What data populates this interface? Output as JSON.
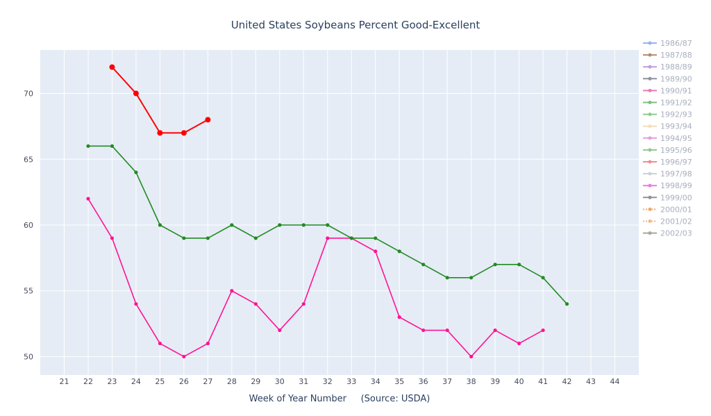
{
  "chart_data": {
    "type": "line",
    "title": "United States Soybeans Percent Good-Excellent",
    "xlabel": "Week of Year Number     (Source: USDA)",
    "ylabel": "",
    "xlim": [
      20,
      45
    ],
    "ylim": [
      48.6,
      73.3
    ],
    "xticks": [
      "21",
      "22",
      "23",
      "24",
      "25",
      "26",
      "27",
      "28",
      "29",
      "30",
      "31",
      "32",
      "33",
      "34",
      "35",
      "36",
      "37",
      "38",
      "39",
      "40",
      "41",
      "42",
      "43",
      "44"
    ],
    "yticks": [
      "50",
      "55",
      "60",
      "65",
      "70"
    ],
    "grid": true,
    "legend_position": "right",
    "plot_background": "#e5ecf6",
    "series": [
      {
        "name": "1986/87",
        "color": "#93b4f0",
        "x": [],
        "values": []
      },
      {
        "name": "1987/88",
        "color": "#b08b72",
        "x": [],
        "values": []
      },
      {
        "name": "1988/89",
        "color": "#c39ae0",
        "x": [],
        "values": []
      },
      {
        "name": "1989/90",
        "color": "#8e929e",
        "x": [],
        "values": []
      },
      {
        "name": "1990/91",
        "color": "#e879b6",
        "x": [],
        "values": []
      },
      {
        "name": "1991/92",
        "color": "#7bbf7b",
        "x": [],
        "values": []
      },
      {
        "name": "1992/93",
        "color": "#8ccc8c",
        "x": [],
        "values": []
      },
      {
        "name": "1993/94",
        "color": "#f4ddb8",
        "x": [],
        "values": []
      },
      {
        "name": "1994/95",
        "color": "#e89ae0",
        "x": [],
        "values": []
      },
      {
        "name": "1995/96",
        "color": "#92c78e",
        "x": [],
        "values": []
      },
      {
        "name": "1996/97",
        "color": "#ee8f8f",
        "x": [],
        "values": []
      },
      {
        "name": "1997/98",
        "color": "#c9d0da",
        "x": [],
        "values": []
      },
      {
        "name": "1998/99",
        "color": "#e67ce0",
        "x": [],
        "values": []
      },
      {
        "name": "1999/00",
        "color": "#8e929e",
        "x": [],
        "values": []
      },
      {
        "name": "2000/01",
        "color": "#f0a868",
        "dash": true,
        "x": [],
        "values": []
      },
      {
        "name": "2001/02",
        "color": "#f0b890",
        "dash": true,
        "x": [],
        "values": []
      },
      {
        "name": "2002/03",
        "color": "#a8a89c",
        "x": [],
        "values": []
      },
      {
        "name": "",
        "color": "#ff1493",
        "x": [
          22,
          23,
          24,
          25,
          26,
          27,
          28,
          29,
          30,
          31,
          32,
          33,
          34,
          35,
          36,
          37,
          38,
          39,
          40,
          41
        ],
        "values": [
          62,
          59,
          54,
          51,
          50,
          51,
          55,
          54,
          52,
          54,
          59,
          59,
          58,
          53,
          52,
          52,
          50,
          52,
          51,
          52
        ]
      },
      {
        "name": "",
        "color": "#228b22",
        "x": [
          22,
          23,
          24,
          25,
          26,
          27,
          28,
          29,
          30,
          31,
          32,
          33,
          34,
          35,
          36,
          37,
          38,
          39,
          40,
          41,
          42
        ],
        "values": [
          66,
          66,
          64,
          60,
          59,
          59,
          60,
          59,
          60,
          60,
          60,
          59,
          59,
          58,
          57,
          56,
          56,
          57,
          57,
          56,
          54
        ]
      },
      {
        "name": "",
        "color": "#ff0000",
        "big": true,
        "x": [
          23,
          24,
          25,
          26,
          27
        ],
        "values": [
          72,
          70,
          67,
          67,
          68
        ]
      }
    ]
  }
}
